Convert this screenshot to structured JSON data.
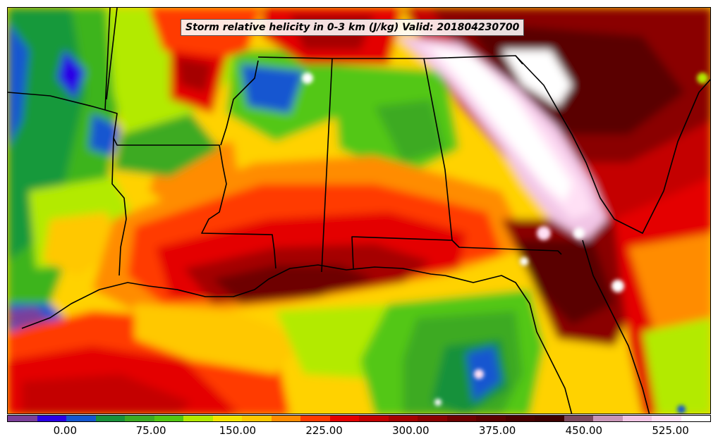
{
  "title": "Storm relative helicity in 0-3 km (J/kg) Valid: 201804230700",
  "colorbar": {
    "colors": [
      "#7b3f9a",
      "#2a00e6",
      "#1457d0",
      "#19913b",
      "#3caa23",
      "#52c712",
      "#b3ea00",
      "#f5e400",
      "#ffc800",
      "#ff8c00",
      "#ff3a00",
      "#e40000",
      "#c40000",
      "#a50000",
      "#8a0000",
      "#6e0000",
      "#5a0000",
      "#480000",
      "#3e0000",
      "#7d4a5f",
      "#c996b8",
      "#f2c6e6",
      "#ffe0f5",
      "#ffffff"
    ],
    "ticks": [
      {
        "label": "0.00",
        "pos": 0.0825
      },
      {
        "label": "75.00",
        "pos": 0.2045
      },
      {
        "label": "150.00",
        "pos": 0.3275
      },
      {
        "label": "225.00",
        "pos": 0.4505
      },
      {
        "label": "300.00",
        "pos": 0.5735
      },
      {
        "label": "375.00",
        "pos": 0.6965
      },
      {
        "label": "450.00",
        "pos": 0.8195
      },
      {
        "label": "525.00",
        "pos": 0.9425
      }
    ]
  }
}
